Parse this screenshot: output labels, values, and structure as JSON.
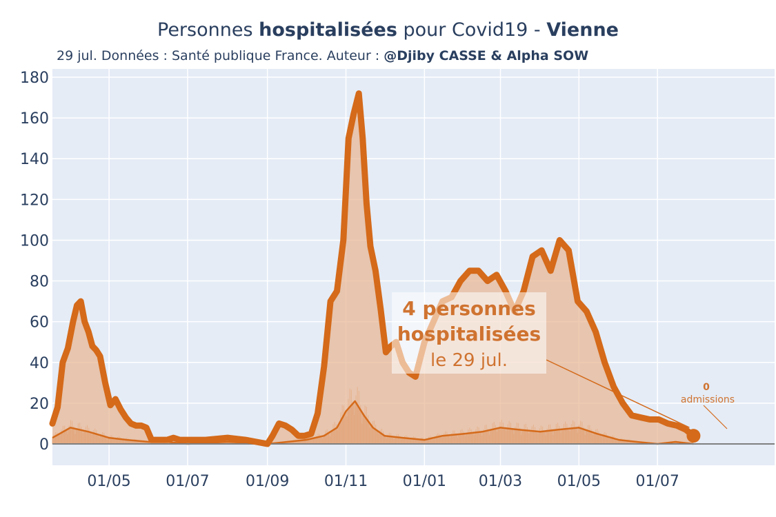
{
  "title": {
    "prefix": "Personnes ",
    "bold1": "hospitalisées",
    "middle": " pour Covid19 - ",
    "bold2": "Vienne"
  },
  "subtitle": {
    "text": "29 jul. Données : Santé publique France. Auteur : ",
    "bold": "@Djiby CASSE & Alpha SOW"
  },
  "colors": {
    "line": "#d46a1a",
    "fill": "#e8b592",
    "plot_bg": "#e5ecf6",
    "grid": "#ffffff",
    "zero_line": "#7f7f7f",
    "annotation": "#cf7330"
  },
  "annotation_main": {
    "line1": "4 personnes",
    "line2": "hospitalisées",
    "line3": "le 29 jul."
  },
  "annotation_small": {
    "value": "0",
    "label": "admissions"
  },
  "chart_data": {
    "type": "area",
    "x_axis": "date",
    "xlim": [
      "2020-03-18",
      "2021-09-30"
    ],
    "ylim": [
      -10,
      180
    ],
    "yticks": [
      0,
      20,
      40,
      60,
      80,
      100,
      120,
      140,
      160,
      180
    ],
    "xticks": [
      "2020-05-01",
      "2020-07-01",
      "2020-09-01",
      "2020-11-01",
      "2021-01-01",
      "2021-03-01",
      "2021-05-01",
      "2021-07-01"
    ],
    "xtick_labels": [
      "01/05",
      "01/07",
      "01/09",
      "01/11",
      "01/01",
      "01/03",
      "01/05",
      "01/07"
    ],
    "grid": true,
    "series": [
      {
        "values_x": [
          "2020-03-18",
          "2020-03-22",
          "2020-03-26",
          "2020-03-30",
          "2020-04-03",
          "2020-04-06",
          "2020-04-09",
          "2020-04-12",
          "2020-04-15",
          "2020-04-18",
          "2020-04-21",
          "2020-04-24",
          "2020-04-28",
          "2020-05-02",
          "2020-05-06",
          "2020-05-10",
          "2020-05-14",
          "2020-05-18",
          "2020-05-22",
          "2020-05-26",
          "2020-05-30",
          "2020-06-03",
          "2020-06-07",
          "2020-06-11",
          "2020-06-15",
          "2020-06-20",
          "2020-06-25",
          "2020-07-01",
          "2020-07-15",
          "2020-08-01",
          "2020-08-15",
          "2020-09-01",
          "2020-09-05",
          "2020-09-10",
          "2020-09-15",
          "2020-09-20",
          "2020-09-25",
          "2020-09-30",
          "2020-10-05",
          "2020-10-10",
          "2020-10-15",
          "2020-10-20",
          "2020-10-25",
          "2020-10-30",
          "2020-11-03",
          "2020-11-07",
          "2020-11-11",
          "2020-11-14",
          "2020-11-17",
          "2020-11-20",
          "2020-11-24",
          "2020-11-28",
          "2020-12-02",
          "2020-12-06",
          "2020-12-10",
          "2020-12-15",
          "2020-12-20",
          "2020-12-25",
          "2021-01-01",
          "2021-01-08",
          "2021-01-15",
          "2021-01-22",
          "2021-01-29",
          "2021-02-05",
          "2021-02-12",
          "2021-02-19",
          "2021-02-26",
          "2021-03-05",
          "2021-03-12",
          "2021-03-19",
          "2021-03-26",
          "2021-04-02",
          "2021-04-09",
          "2021-04-16",
          "2021-04-23",
          "2021-04-30",
          "2021-05-07",
          "2021-05-14",
          "2021-05-21",
          "2021-05-28",
          "2021-06-04",
          "2021-06-11",
          "2021-06-18",
          "2021-06-25",
          "2021-07-02",
          "2021-07-09",
          "2021-07-16",
          "2021-07-23",
          "2021-07-29"
        ],
        "values": [
          10,
          18,
          40,
          47,
          60,
          68,
          70,
          60,
          55,
          48,
          46,
          43,
          30,
          19,
          22,
          17,
          13,
          10,
          9,
          9,
          8,
          2,
          2,
          2,
          2,
          3,
          2,
          2,
          2,
          3,
          2,
          0,
          4,
          10,
          9,
          7,
          4,
          4,
          5,
          15,
          38,
          70,
          75,
          100,
          150,
          162,
          172,
          150,
          118,
          97,
          85,
          66,
          45,
          48,
          50,
          40,
          35,
          33,
          50,
          60,
          70,
          72,
          80,
          85,
          85,
          80,
          83,
          75,
          65,
          75,
          92,
          95,
          85,
          100,
          95,
          70,
          65,
          55,
          40,
          28,
          20,
          14,
          13,
          12,
          12,
          10,
          9,
          7,
          4
        ]
      },
      {
        "values_x": [
          "2020-03-18",
          "2020-04-01",
          "2020-04-15",
          "2020-05-01",
          "2020-05-15",
          "2020-06-01",
          "2020-06-15",
          "2020-07-01",
          "2020-08-01",
          "2020-09-01",
          "2020-10-01",
          "2020-10-15",
          "2020-10-25",
          "2020-11-01",
          "2020-11-08",
          "2020-11-15",
          "2020-11-22",
          "2020-12-01",
          "2020-12-15",
          "2021-01-01",
          "2021-01-15",
          "2021-02-01",
          "2021-02-15",
          "2021-03-01",
          "2021-03-15",
          "2021-04-01",
          "2021-04-15",
          "2021-05-01",
          "2021-05-15",
          "2021-06-01",
          "2021-06-15",
          "2021-07-01",
          "2021-07-15",
          "2021-07-29"
        ],
        "values": [
          3,
          8,
          6,
          3,
          2,
          1,
          1,
          0,
          1,
          0,
          2,
          4,
          8,
          16,
          21,
          14,
          8,
          4,
          3,
          2,
          4,
          5,
          6,
          8,
          7,
          6,
          7,
          8,
          5,
          2,
          1,
          0,
          1,
          0
        ]
      }
    ]
  }
}
